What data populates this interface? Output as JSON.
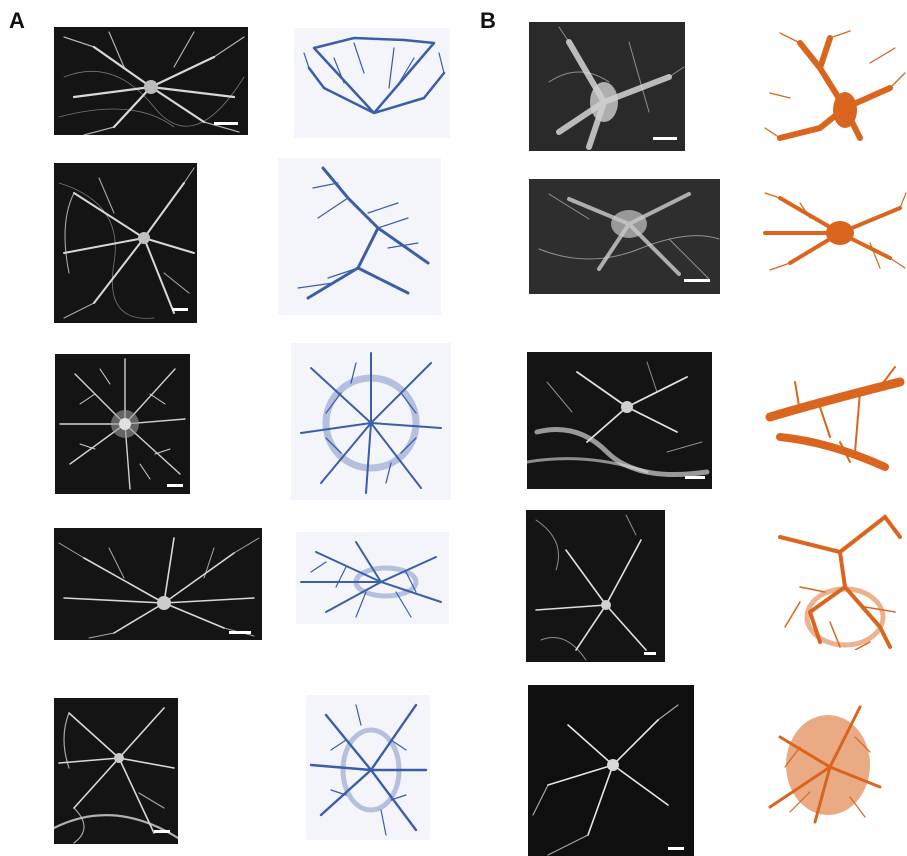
{
  "panels": {
    "a": {
      "label": "A",
      "recon_color": "#3b5ea8",
      "micro_fill": "#141414",
      "stain_color": "#e6e6e6"
    },
    "b": {
      "label": "B",
      "recon_color": "#d9651e",
      "micro_fill": "#1c1c1c",
      "stain_color": "#f0f0f0"
    }
  },
  "figure": {
    "rows_per_panel": 5,
    "image_types": [
      "fluorescence-micrograph",
      "3d-reconstruction"
    ],
    "background": "#ffffff"
  }
}
